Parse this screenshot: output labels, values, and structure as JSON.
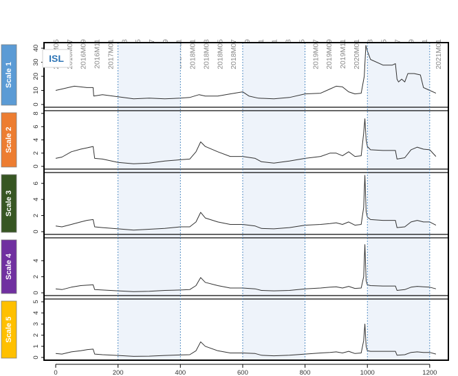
{
  "chart_data": {
    "type": "line",
    "title": "ISL",
    "title_color": "#2e75b6",
    "line_color": "#303030",
    "grid": false,
    "x_range": [
      0,
      1240
    ],
    "x_ticks": [
      0,
      200,
      400,
      600,
      800,
      1000,
      1200
    ],
    "date_labels": [
      "2016M05",
      "2016M07",
      "2016M09",
      "2016M11",
      "2017M01",
      "2017M03",
      "2017M05",
      "2017M07",
      "2017M09",
      "2017M11",
      "2018M01",
      "2018M03",
      "2018M05",
      "2018M07",
      "2018M09",
      "2018M11",
      "2019M01",
      "2019M03",
      "2019M05",
      "2019M07",
      "2019M09",
      "2019M11",
      "2020M01",
      "2020M03",
      "2020M05",
      "2020M07",
      "2020M09",
      "2020M11",
      "2021M01"
    ],
    "vertical_markers": [
      200,
      400,
      600,
      800,
      1000,
      1200
    ],
    "shaded_intervals": [
      [
        200,
        400
      ],
      [
        600,
        800
      ],
      [
        1000,
        1200
      ]
    ],
    "panels": [
      {
        "name": "Scale 1",
        "color": "#5b9bd5",
        "ylim": [
          0,
          42
        ],
        "yticks": [
          0,
          10,
          20,
          30,
          40
        ],
        "points": [
          [
            0,
            10
          ],
          [
            20,
            11
          ],
          [
            40,
            12
          ],
          [
            60,
            13
          ],
          [
            80,
            12.5
          ],
          [
            100,
            12
          ],
          [
            120,
            12
          ],
          [
            122,
            6
          ],
          [
            150,
            7
          ],
          [
            200,
            5.5
          ],
          [
            250,
            4
          ],
          [
            300,
            4.5
          ],
          [
            350,
            4
          ],
          [
            400,
            4.5
          ],
          [
            430,
            5
          ],
          [
            460,
            7
          ],
          [
            480,
            6
          ],
          [
            520,
            6
          ],
          [
            560,
            7.5
          ],
          [
            600,
            9
          ],
          [
            620,
            6
          ],
          [
            650,
            4.5
          ],
          [
            700,
            4
          ],
          [
            750,
            5
          ],
          [
            800,
            7.5
          ],
          [
            850,
            8
          ],
          [
            880,
            11
          ],
          [
            900,
            13
          ],
          [
            920,
            12.5
          ],
          [
            940,
            9
          ],
          [
            960,
            7.5
          ],
          [
            980,
            8
          ],
          [
            990,
            20
          ],
          [
            995,
            42
          ],
          [
            1000,
            38
          ],
          [
            1010,
            32
          ],
          [
            1050,
            28
          ],
          [
            1080,
            28
          ],
          [
            1090,
            29
          ],
          [
            1095,
            18
          ],
          [
            1100,
            16
          ],
          [
            1110,
            18
          ],
          [
            1120,
            16
          ],
          [
            1130,
            22
          ],
          [
            1150,
            22
          ],
          [
            1170,
            21
          ],
          [
            1180,
            12
          ],
          [
            1200,
            10
          ],
          [
            1220,
            8
          ]
        ]
      },
      {
        "name": "Scale 2",
        "color": "#ed7d31",
        "ylim": [
          0,
          8
        ],
        "yticks": [
          0,
          2,
          4,
          6,
          8
        ],
        "points": [
          [
            0,
            1.2
          ],
          [
            20,
            1.4
          ],
          [
            50,
            2.2
          ],
          [
            80,
            2.6
          ],
          [
            100,
            2.8
          ],
          [
            120,
            3
          ],
          [
            125,
            1.2
          ],
          [
            150,
            1.1
          ],
          [
            200,
            0.6
          ],
          [
            250,
            0.4
          ],
          [
            300,
            0.5
          ],
          [
            350,
            0.8
          ],
          [
            400,
            1
          ],
          [
            430,
            1.1
          ],
          [
            450,
            2.2
          ],
          [
            465,
            3.7
          ],
          [
            480,
            3
          ],
          [
            520,
            2.2
          ],
          [
            560,
            1.5
          ],
          [
            600,
            1.5
          ],
          [
            640,
            1.2
          ],
          [
            660,
            0.7
          ],
          [
            700,
            0.5
          ],
          [
            750,
            0.8
          ],
          [
            800,
            1.2
          ],
          [
            850,
            1.5
          ],
          [
            880,
            2
          ],
          [
            900,
            2
          ],
          [
            920,
            1.6
          ],
          [
            940,
            2.2
          ],
          [
            960,
            1.5
          ],
          [
            980,
            1.6
          ],
          [
            988,
            5
          ],
          [
            992,
            7.2
          ],
          [
            996,
            4
          ],
          [
            1000,
            3
          ],
          [
            1010,
            2.5
          ],
          [
            1050,
            2.4
          ],
          [
            1090,
            2.4
          ],
          [
            1095,
            1.1
          ],
          [
            1120,
            1.3
          ],
          [
            1140,
            2.5
          ],
          [
            1160,
            2.9
          ],
          [
            1180,
            2.6
          ],
          [
            1200,
            2.5
          ],
          [
            1220,
            1.5
          ]
        ]
      },
      {
        "name": "Scale 3",
        "color": "#375623",
        "ylim": [
          0,
          7
        ],
        "yticks": [
          0,
          2,
          4,
          6
        ],
        "points": [
          [
            0,
            0.7
          ],
          [
            20,
            0.6
          ],
          [
            50,
            0.9
          ],
          [
            80,
            1.2
          ],
          [
            100,
            1.4
          ],
          [
            120,
            1.5
          ],
          [
            125,
            0.6
          ],
          [
            150,
            0.5
          ],
          [
            200,
            0.35
          ],
          [
            250,
            0.2
          ],
          [
            300,
            0.3
          ],
          [
            350,
            0.4
          ],
          [
            400,
            0.6
          ],
          [
            430,
            0.6
          ],
          [
            450,
            1.2
          ],
          [
            465,
            2.4
          ],
          [
            480,
            1.7
          ],
          [
            520,
            1.2
          ],
          [
            560,
            0.9
          ],
          [
            600,
            0.9
          ],
          [
            640,
            0.7
          ],
          [
            660,
            0.4
          ],
          [
            700,
            0.35
          ],
          [
            750,
            0.5
          ],
          [
            800,
            0.8
          ],
          [
            850,
            0.9
          ],
          [
            880,
            1
          ],
          [
            900,
            1.1
          ],
          [
            920,
            0.9
          ],
          [
            940,
            1.2
          ],
          [
            960,
            0.8
          ],
          [
            980,
            0.9
          ],
          [
            988,
            3
          ],
          [
            992,
            7
          ],
          [
            996,
            2.5
          ],
          [
            1000,
            1.8
          ],
          [
            1010,
            1.5
          ],
          [
            1050,
            1.4
          ],
          [
            1090,
            1.4
          ],
          [
            1095,
            0.5
          ],
          [
            1120,
            0.6
          ],
          [
            1140,
            1.2
          ],
          [
            1160,
            1.4
          ],
          [
            1180,
            1.2
          ],
          [
            1200,
            1.2
          ],
          [
            1220,
            0.8
          ]
        ]
      },
      {
        "name": "Scale 4",
        "color": "#7030a0",
        "ylim": [
          0,
          6.5
        ],
        "yticks": [
          0,
          2,
          4
        ],
        "points": [
          [
            0,
            0.5
          ],
          [
            20,
            0.4
          ],
          [
            50,
            0.7
          ],
          [
            80,
            0.9
          ],
          [
            100,
            0.95
          ],
          [
            120,
            1
          ],
          [
            125,
            0.4
          ],
          [
            150,
            0.35
          ],
          [
            200,
            0.25
          ],
          [
            250,
            0.15
          ],
          [
            300,
            0.2
          ],
          [
            350,
            0.3
          ],
          [
            400,
            0.35
          ],
          [
            430,
            0.4
          ],
          [
            450,
            0.9
          ],
          [
            465,
            1.9
          ],
          [
            480,
            1.3
          ],
          [
            520,
            0.9
          ],
          [
            560,
            0.6
          ],
          [
            600,
            0.6
          ],
          [
            640,
            0.5
          ],
          [
            660,
            0.3
          ],
          [
            700,
            0.25
          ],
          [
            750,
            0.3
          ],
          [
            800,
            0.5
          ],
          [
            850,
            0.6
          ],
          [
            880,
            0.7
          ],
          [
            900,
            0.75
          ],
          [
            920,
            0.6
          ],
          [
            940,
            0.8
          ],
          [
            960,
            0.55
          ],
          [
            980,
            0.6
          ],
          [
            988,
            2
          ],
          [
            992,
            6
          ],
          [
            996,
            1.5
          ],
          [
            1000,
            1
          ],
          [
            1010,
            0.9
          ],
          [
            1050,
            0.85
          ],
          [
            1090,
            0.85
          ],
          [
            1095,
            0.3
          ],
          [
            1120,
            0.4
          ],
          [
            1140,
            0.7
          ],
          [
            1160,
            0.8
          ],
          [
            1180,
            0.75
          ],
          [
            1200,
            0.7
          ],
          [
            1220,
            0.5
          ]
        ]
      },
      {
        "name": "Scale 5",
        "color": "#ffc000",
        "ylim": [
          0,
          5
        ],
        "yticks": [
          0,
          1,
          2,
          3,
          4,
          5
        ],
        "points": [
          [
            0,
            0.35
          ],
          [
            20,
            0.3
          ],
          [
            50,
            0.5
          ],
          [
            80,
            0.6
          ],
          [
            100,
            0.7
          ],
          [
            120,
            0.75
          ],
          [
            125,
            0.3
          ],
          [
            150,
            0.25
          ],
          [
            200,
            0.18
          ],
          [
            250,
            0.1
          ],
          [
            300,
            0.12
          ],
          [
            350,
            0.18
          ],
          [
            400,
            0.22
          ],
          [
            430,
            0.25
          ],
          [
            450,
            0.6
          ],
          [
            465,
            1.4
          ],
          [
            480,
            1
          ],
          [
            520,
            0.6
          ],
          [
            560,
            0.4
          ],
          [
            600,
            0.4
          ],
          [
            640,
            0.35
          ],
          [
            660,
            0.2
          ],
          [
            700,
            0.15
          ],
          [
            750,
            0.2
          ],
          [
            800,
            0.3
          ],
          [
            850,
            0.4
          ],
          [
            880,
            0.45
          ],
          [
            900,
            0.5
          ],
          [
            920,
            0.4
          ],
          [
            940,
            0.55
          ],
          [
            960,
            0.35
          ],
          [
            980,
            0.4
          ],
          [
            988,
            1.5
          ],
          [
            992,
            3
          ],
          [
            996,
            1
          ],
          [
            1000,
            0.6
          ],
          [
            1010,
            0.55
          ],
          [
            1050,
            0.55
          ],
          [
            1090,
            0.55
          ],
          [
            1095,
            0.2
          ],
          [
            1120,
            0.25
          ],
          [
            1140,
            0.45
          ],
          [
            1160,
            0.5
          ],
          [
            1180,
            0.45
          ],
          [
            1200,
            0.45
          ],
          [
            1220,
            0.3
          ]
        ]
      }
    ]
  }
}
